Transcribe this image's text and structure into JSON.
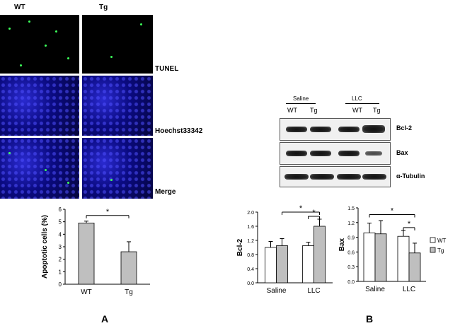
{
  "panel_a": {
    "col_labels": [
      "WT",
      "Tg"
    ],
    "row_labels": [
      "TUNEL",
      "Hoechst33342",
      "Merge"
    ],
    "letter": "A"
  },
  "panel_b": {
    "group_labels": [
      "Saline",
      "LLC"
    ],
    "lane_labels": [
      "WT",
      "Tg",
      "WT",
      "Tg"
    ],
    "blot_labels": [
      "Bcl-2",
      "Bax",
      "α-Tubulin"
    ],
    "letter": "B"
  },
  "legend": [
    "WT",
    "Tg"
  ],
  "colors": {
    "wt": "#ffffff",
    "tg": "#bfbfbf",
    "axis": "#000000",
    "nuclei": "#1a1aa8",
    "tunel_dot": "#3cff5a"
  },
  "chart_data": [
    {
      "type": "bar",
      "categories": [
        "WT",
        "Tg"
      ],
      "values": [
        4.9,
        2.6
      ],
      "errors": [
        0.15,
        0.8
      ],
      "ylabel": "Apoptotic cells (%)",
      "xlabel": "",
      "ylim": [
        0,
        6
      ],
      "yticks": [
        "0",
        "1",
        "2",
        "3",
        "4",
        "5",
        "6"
      ],
      "significance": [
        {
          "between": [
            "WT",
            "Tg"
          ],
          "mark": "*"
        }
      ]
    },
    {
      "type": "bar",
      "categories": [
        "Saline",
        "LLC"
      ],
      "series": [
        {
          "name": "WT",
          "values": [
            1.0,
            1.05
          ],
          "errors": [
            0.17,
            0.1
          ]
        },
        {
          "name": "Tg",
          "values": [
            1.05,
            1.6
          ],
          "errors": [
            0.2,
            0.2
          ]
        }
      ],
      "ylabel": "Bcl-2",
      "ylim": [
        0,
        2.0
      ],
      "yticks": [
        "0.0",
        "0.4",
        "0.8",
        "1.2",
        "1.6",
        "2.0"
      ],
      "significance": [
        {
          "between": [
            "Saline Tg",
            "LLC Tg"
          ],
          "mark": "*"
        },
        {
          "between": [
            "LLC WT",
            "LLC Tg"
          ],
          "mark": "*"
        }
      ]
    },
    {
      "type": "bar",
      "categories": [
        "Saline",
        "LLC"
      ],
      "series": [
        {
          "name": "WT",
          "values": [
            0.99,
            0.92
          ],
          "errors": [
            0.2,
            0.12
          ]
        },
        {
          "name": "Tg",
          "values": [
            0.97,
            0.58
          ],
          "errors": [
            0.27,
            0.2
          ]
        }
      ],
      "ylabel": "Bax",
      "ylim": [
        0,
        1.5
      ],
      "yticks": [
        "0.0",
        "0.3",
        "0.6",
        "0.9",
        "1.2",
        "1.5"
      ],
      "legend": "right",
      "significance": [
        {
          "between": [
            "Saline WT",
            "LLC Tg"
          ],
          "mark": "*"
        },
        {
          "between": [
            "LLC WT",
            "LLC Tg"
          ],
          "mark": "*"
        }
      ]
    }
  ]
}
